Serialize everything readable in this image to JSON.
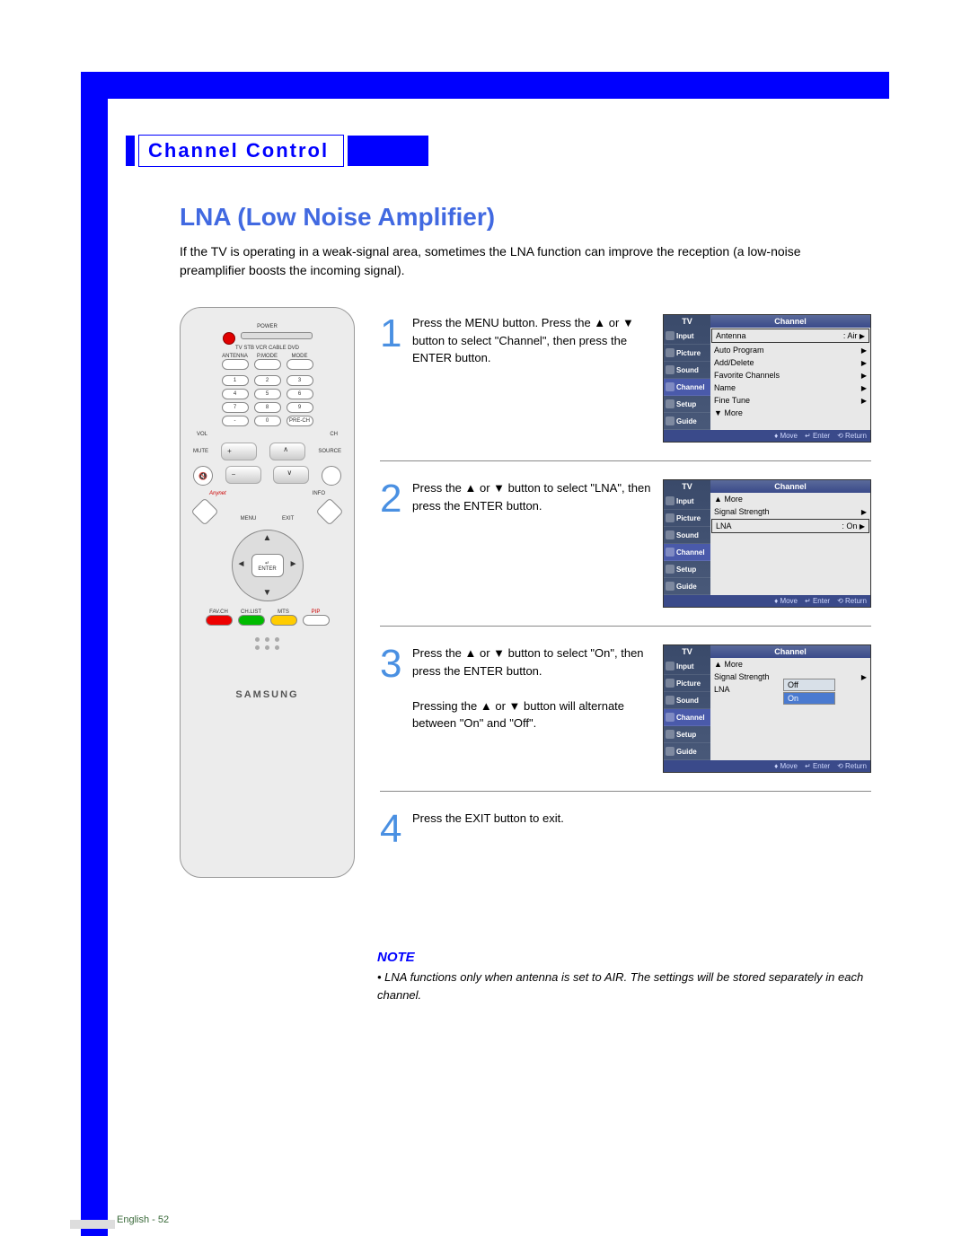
{
  "chapter_title": "Channel Control",
  "section_title": "LNA (Low Noise Amplifier)",
  "intro": "If the TV is operating in a weak-signal area, sometimes the LNA function can improve the reception (a low-noise preamplifier boosts the incoming signal).",
  "steps": [
    {
      "num": "1",
      "text": "Press the MENU button. Press the ▲ or ▼ button to select \"Channel\", then press the ENTER button."
    },
    {
      "num": "2",
      "text": "Press the ▲ or ▼ button to select \"LNA\", then press the ENTER button."
    },
    {
      "num": "3",
      "text": "Press the ▲ or ▼ button to select \"On\", then press the ENTER button.\n\nPressing the ▲ or ▼ button will alternate between \"On\" and \"Off\"."
    },
    {
      "num": "4",
      "text": "Press the EXIT button to exit."
    }
  ],
  "osd": {
    "tv_label": "TV",
    "title": "Channel",
    "tabs": [
      "Input",
      "Picture",
      "Sound",
      "Channel",
      "Setup",
      "Guide"
    ],
    "footer": {
      "move": "Move",
      "enter": "Enter",
      "return": "Return"
    },
    "screen1_items": [
      {
        "label": "Antenna",
        "value": ": Air",
        "arrow": true,
        "boxed": true
      },
      {
        "label": "Auto Program",
        "value": "",
        "arrow": true
      },
      {
        "label": "Add/Delete",
        "value": "",
        "arrow": true
      },
      {
        "label": "Favorite Channels",
        "value": "",
        "arrow": true
      },
      {
        "label": "Name",
        "value": "",
        "arrow": true
      },
      {
        "label": "Fine Tune",
        "value": "",
        "arrow": true
      },
      {
        "label": "▼ More",
        "value": "",
        "arrow": false
      }
    ],
    "screen2_items": [
      {
        "label": "▲ More",
        "value": "",
        "arrow": false
      },
      {
        "label": "Signal Strength",
        "value": "",
        "arrow": true
      },
      {
        "label": "LNA",
        "value": ": On",
        "arrow": true,
        "boxed": true
      }
    ],
    "screen3_items": [
      {
        "label": "▲ More",
        "value": "",
        "arrow": false
      },
      {
        "label": "Signal Strength",
        "value": "",
        "arrow": true
      },
      {
        "label": "LNA",
        "value": "",
        "arrow": false
      }
    ],
    "screen3_popup": [
      "Off",
      "On"
    ],
    "screen3_popup_selected": 1
  },
  "remote": {
    "power": "POWER",
    "modes": "TV  STB  VCR  CABLE  DVD",
    "row1": [
      "ANTENNA",
      "P.MODE",
      "MODE"
    ],
    "numpad": [
      [
        "1",
        "2",
        "3"
      ],
      [
        "4",
        "5",
        "6"
      ],
      [
        "7",
        "8",
        "9"
      ],
      [
        "-",
        "0",
        "PRE-CH"
      ]
    ],
    "vol": "VOL",
    "ch": "CH",
    "mute": "MUTE",
    "source": "SOURCE",
    "anynet": "Anynet",
    "info": "INFO",
    "menu": "MENU",
    "exit": "EXIT",
    "enter_up": "▲",
    "enter_down": "▼",
    "enter_l": "◄",
    "enter_r": "►",
    "enter_icon": "↵",
    "enter": "ENTER",
    "bottom": [
      "FAV.CH",
      "CH.LIST",
      "MTS",
      "PIP"
    ],
    "brand": "SAMSUNG"
  },
  "note_title": "NOTE",
  "note_body": "• LNA functions only when antenna is set to AIR. The settings will be stored separately in each channel.",
  "footer": "English - 52",
  "colors": {
    "accent": "#0000ff",
    "step": "#4a90e2",
    "section": "#4169e1"
  }
}
